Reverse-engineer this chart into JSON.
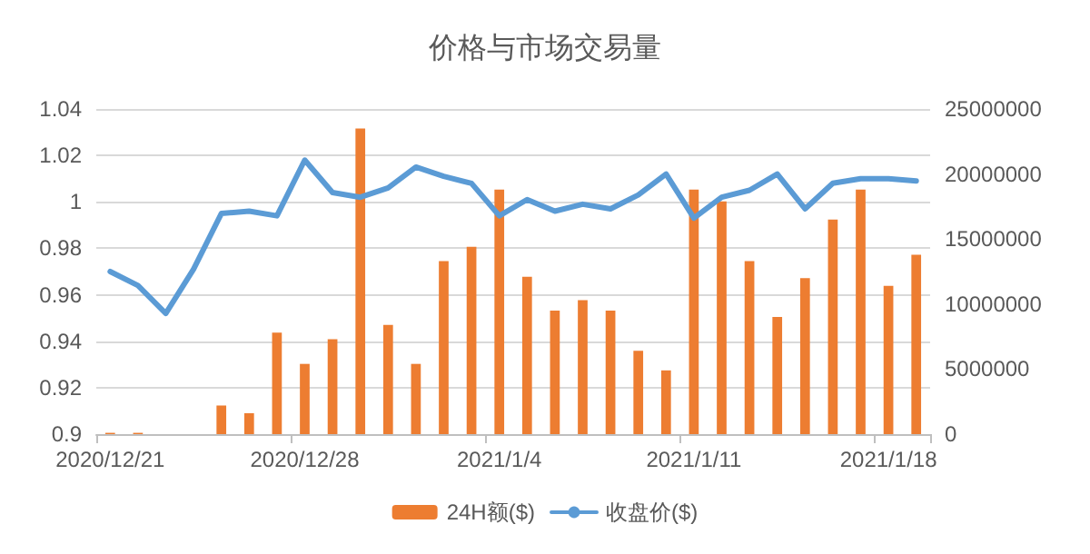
{
  "chart_data": {
    "type": "bar",
    "title": "价格与市场交易量",
    "categories": [
      "2020/12/21",
      null,
      null,
      null,
      null,
      null,
      null,
      "2020/12/28",
      null,
      null,
      null,
      null,
      null,
      null,
      "2021/1/4",
      null,
      null,
      null,
      null,
      null,
      null,
      "2021/1/11",
      null,
      null,
      null,
      null,
      null,
      null,
      "2021/1/18",
      null
    ],
    "series": [
      {
        "name": "24H额($)",
        "axis": "y2",
        "color": "#ed7d31",
        "values": [
          100000,
          100000,
          0,
          0,
          2200000,
          1600000,
          7800000,
          5400000,
          7300000,
          23500000,
          8400000,
          5400000,
          13300000,
          14400000,
          18800000,
          12100000,
          9500000,
          10300000,
          9500000,
          6400000,
          4900000,
          18800000,
          17900000,
          13300000,
          9000000,
          12000000,
          16500000,
          18800000,
          11400000,
          13800000
        ]
      },
      {
        "name": "收盘价($)",
        "type": "line",
        "color": "#5b9bd5",
        "values": [
          0.97,
          0.964,
          0.952,
          0.971,
          0.995,
          0.996,
          0.994,
          1.018,
          1.004,
          1.002,
          1.006,
          1.015,
          1.011,
          1.008,
          0.994,
          1.001,
          0.996,
          0.999,
          0.997,
          1.003,
          1.012,
          0.993,
          1.002,
          1.005,
          1.012,
          0.997,
          1.008,
          1.01,
          1.01,
          1.009
        ]
      }
    ],
    "ylim": [
      0.9,
      1.04
    ],
    "yticks": [
      0.9,
      0.92,
      0.94,
      0.96,
      0.98,
      1,
      1.02,
      1.04
    ],
    "y2lim": [
      0,
      25000000
    ],
    "y2ticks": [
      0,
      5000000,
      10000000,
      15000000,
      20000000,
      25000000
    ],
    "grid": "y",
    "legend": "bottom",
    "marker": "none",
    "line_style": "solid"
  }
}
